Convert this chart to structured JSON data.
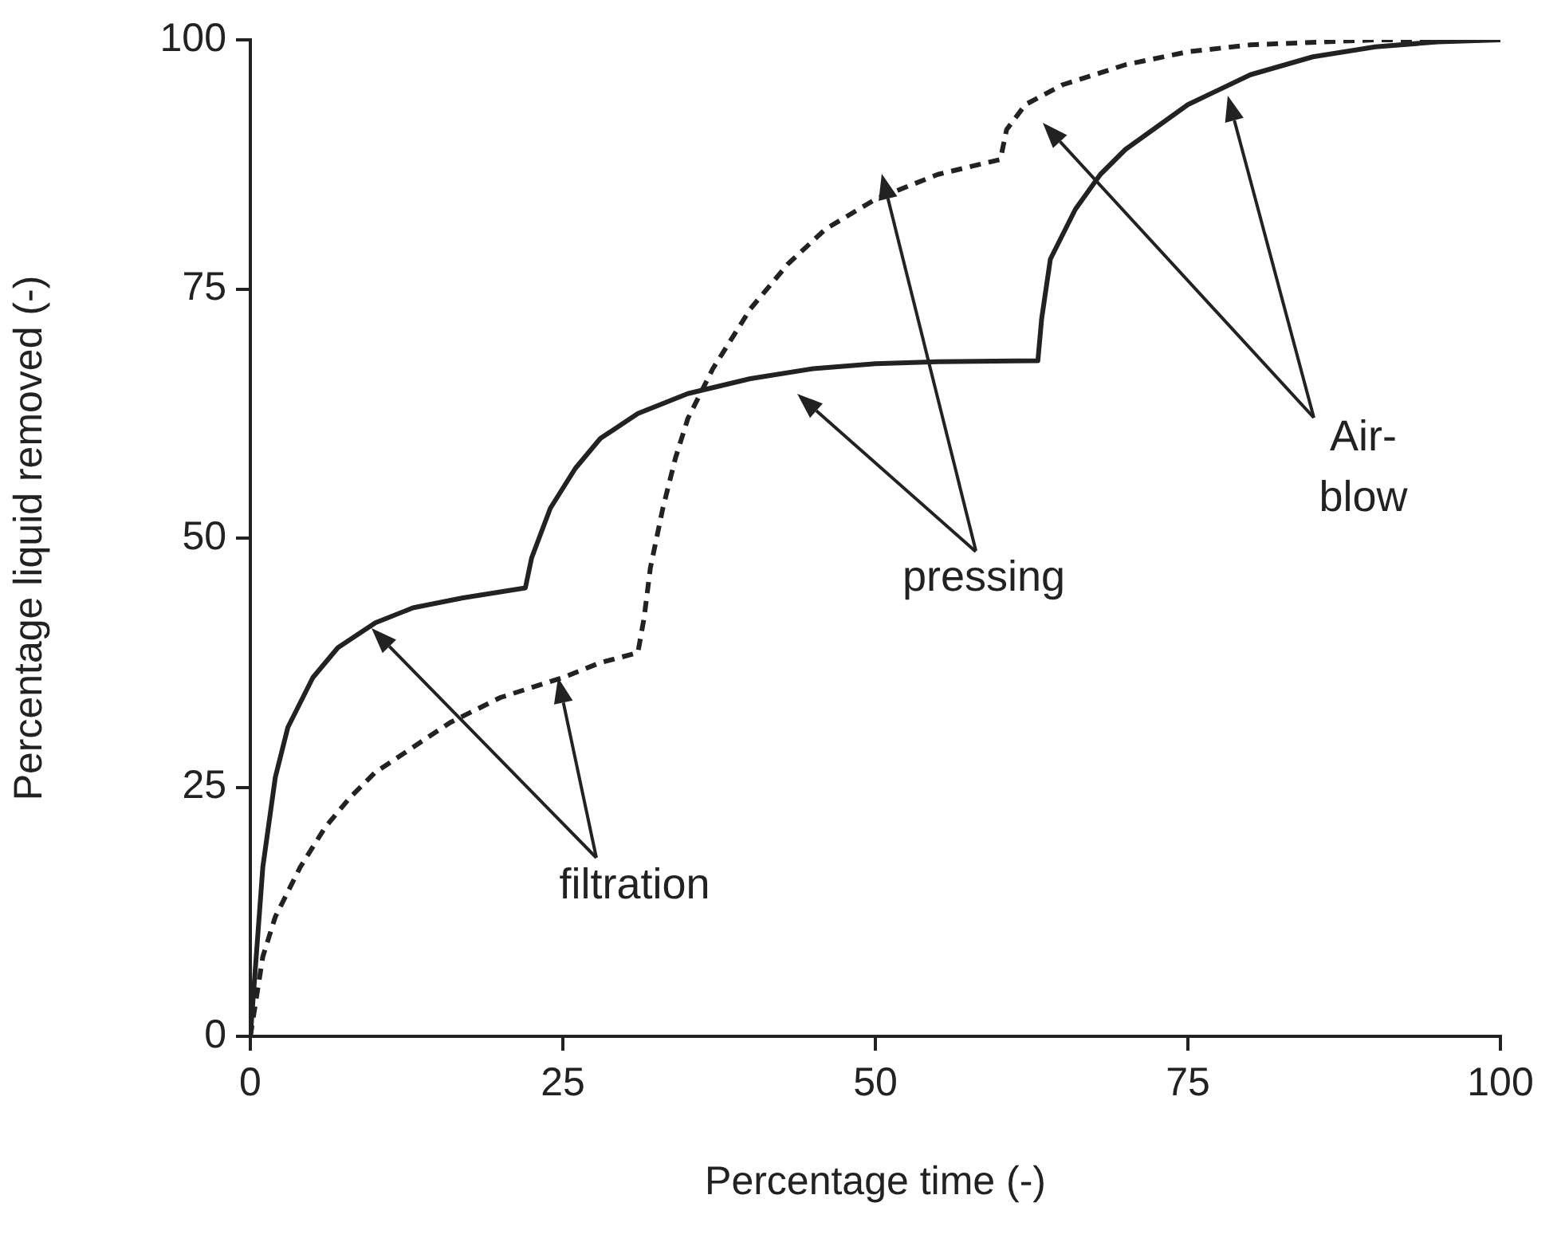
{
  "chart_data": {
    "type": "line",
    "xlabel": "Percentage time (-)",
    "ylabel": "Percentage liquid removed (-)",
    "xlim": [
      0,
      100
    ],
    "ylim": [
      0,
      100
    ],
    "xticks": [
      0,
      25,
      50,
      75,
      100
    ],
    "yticks": [
      0,
      25,
      50,
      75,
      100
    ],
    "marker": "none",
    "series": [
      {
        "color": "#222222",
        "line_style": "solid",
        "x": [
          0,
          1,
          2,
          3,
          5,
          7,
          10,
          13,
          17,
          22,
          22.5,
          24,
          26,
          28,
          31,
          35,
          40,
          45,
          50,
          55,
          63,
          63.3,
          64,
          66,
          68,
          70,
          75,
          80,
          85,
          90,
          95,
          100
        ],
        "values": [
          0,
          17,
          26,
          31,
          36,
          39,
          41.5,
          43,
          44,
          45,
          48,
          53,
          57,
          60,
          62.5,
          64.5,
          66,
          67,
          67.5,
          67.7,
          67.8,
          72,
          78,
          83,
          86.5,
          89,
          93.5,
          96.5,
          98.3,
          99.3,
          99.8,
          100
        ]
      },
      {
        "color": "#222222",
        "line_style": "dashed",
        "x": [
          0,
          1,
          2,
          4,
          6,
          8,
          10,
          13,
          16,
          20,
          25,
          28,
          31,
          31.5,
          32,
          33,
          34,
          35,
          37,
          40,
          43,
          46,
          50,
          55,
          60,
          60.5,
          62,
          65,
          70,
          75,
          80,
          90,
          100
        ],
        "values": [
          0,
          8,
          12,
          17,
          21,
          24,
          26.5,
          29,
          31.5,
          34,
          36,
          37.5,
          38.5,
          42,
          47,
          53,
          58,
          62,
          67,
          73,
          77.5,
          81,
          84,
          86.5,
          88,
          91,
          93.5,
          95.5,
          97.5,
          98.8,
          99.5,
          100,
          100
        ]
      }
    ],
    "annotations": [
      "filtration",
      {
        "text": "pressing",
        "x": 51,
        "y": 84
      },
      "Air-\nblow"
    ]
  }
}
